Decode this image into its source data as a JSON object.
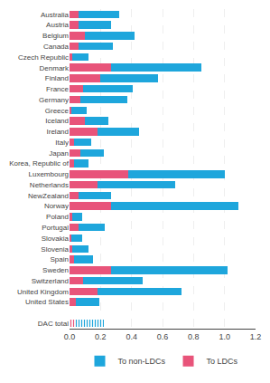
{
  "chart_data": {
    "type": "bar",
    "orientation": "horizontal",
    "stacked": true,
    "categories": [
      "Australia",
      "Austria",
      "Belgium",
      "Canada",
      "Czech Republic",
      "Denmark",
      "Finland",
      "France",
      "Germany",
      "Greece",
      "Iceland",
      "Ireland",
      "Italy",
      "Japan",
      "Korea, Republic of",
      "Luxembourg",
      "Netherlands",
      "NewZealand",
      "Norway",
      "Poland",
      "Portugal",
      "Slovakia",
      "Slovenia",
      "Spain",
      "Sweden",
      "Switzerland",
      "United Kingdom",
      "United States",
      null,
      "DAC total"
    ],
    "series": [
      {
        "name": "To LDCs",
        "color": "#e8547a",
        "values": [
          0.06,
          0.06,
          0.1,
          0.06,
          0.02,
          0.27,
          0.2,
          0.09,
          0.07,
          0.01,
          0.1,
          0.18,
          0.03,
          0.07,
          0.03,
          0.38,
          0.18,
          0.06,
          0.27,
          0.02,
          0.06,
          0.01,
          0.02,
          0.03,
          0.27,
          0.09,
          0.18,
          0.04,
          null,
          0.04
        ]
      },
      {
        "name": "To non-LDCs",
        "color": "#1ea6dc",
        "values": [
          0.26,
          0.21,
          0.32,
          0.22,
          0.1,
          0.58,
          0.37,
          0.32,
          0.3,
          0.1,
          0.15,
          0.27,
          0.11,
          0.15,
          0.09,
          0.62,
          0.5,
          0.21,
          0.82,
          0.06,
          0.17,
          0.07,
          0.1,
          0.12,
          0.75,
          0.38,
          0.54,
          0.15,
          null,
          0.18
        ]
      }
    ],
    "xlim": [
      0,
      1.2
    ],
    "xticks": [
      {
        "value": 0,
        "label": "0.0"
      },
      {
        "value": 0.2,
        "label": "0.2"
      },
      {
        "value": 0.4,
        "label": "0.4"
      },
      {
        "value": 0.6,
        "label": "0.6"
      },
      {
        "value": 0.8,
        "label": "0.8"
      },
      {
        "value": 1.0,
        "label": "1.0"
      },
      {
        "value": 1.2,
        "label": "1.2"
      }
    ],
    "grid": true,
    "legend": "bottom"
  }
}
